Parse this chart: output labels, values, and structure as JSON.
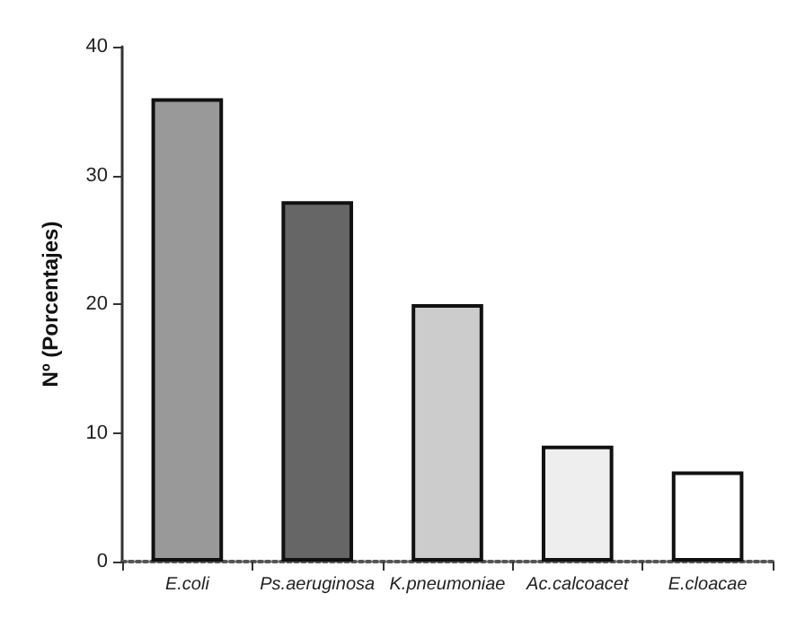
{
  "chart_data": {
    "type": "bar",
    "ylabel": "Nº (Porcentajes)",
    "categories": [
      "E.coli",
      "Ps.aeruginosa",
      "K.pneumoniae",
      "Ac.calcoacet",
      "E.cloacae"
    ],
    "values": [
      36,
      28,
      20,
      9,
      7
    ],
    "colors": [
      "#999999",
      "#666666",
      "#cccccc",
      "#eeeeee",
      "#ffffff"
    ],
    "ylim": [
      0,
      40
    ],
    "yticks": [
      0,
      10,
      20,
      30,
      40
    ]
  }
}
